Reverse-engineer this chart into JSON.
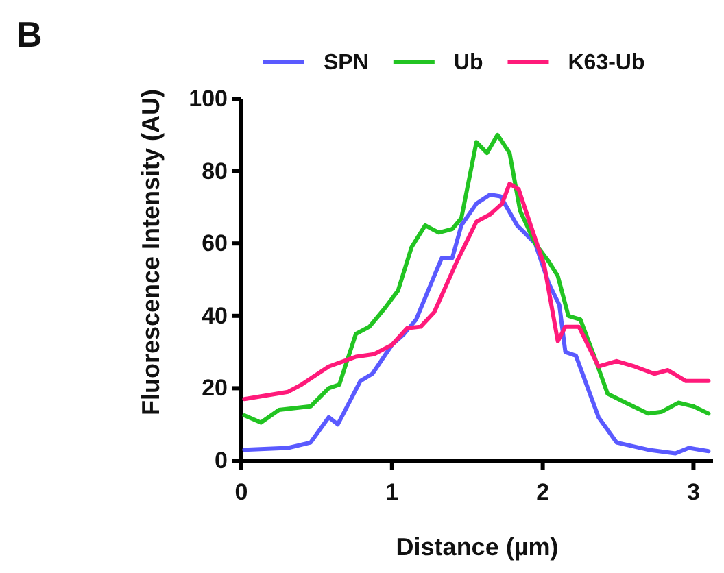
{
  "chart_data": {
    "type": "line",
    "title": "B",
    "xlabel": "Distance (µm)",
    "ylabel": "Fluorescence Intensity (AU)",
    "xlim": [
      0,
      3.13
    ],
    "xticks": [
      0,
      1,
      2,
      3
    ],
    "ylim": [
      0,
      100
    ],
    "yticks": [
      0,
      20,
      40,
      60,
      80,
      100
    ],
    "grid": false,
    "legend": "top",
    "marker": "none",
    "line_style": "solid",
    "series": [
      {
        "name": "SPN",
        "color": "#5a5aff",
        "x": [
          0.02,
          0.31,
          0.46,
          0.58,
          0.64,
          0.79,
          0.87,
          1.0,
          1.08,
          1.16,
          1.28,
          1.33,
          1.4,
          1.46,
          1.56,
          1.65,
          1.72,
          1.83,
          1.95,
          2.04,
          2.11,
          2.15,
          2.22,
          2.37,
          2.49,
          2.7,
          2.88,
          2.97,
          3.1
        ],
        "values": [
          3,
          3.5,
          5,
          12,
          10,
          22,
          24,
          32,
          35,
          39,
          51,
          56,
          56,
          65,
          71,
          73.5,
          73,
          65,
          60,
          49,
          43,
          30,
          29,
          12,
          5,
          3,
          2,
          3.5,
          2.6
        ]
      },
      {
        "name": "Ub",
        "color": "#22c422",
        "x": [
          0.02,
          0.13,
          0.25,
          0.46,
          0.58,
          0.65,
          0.76,
          0.85,
          0.95,
          1.04,
          1.13,
          1.22,
          1.31,
          1.4,
          1.46,
          1.56,
          1.63,
          1.7,
          1.78,
          1.85,
          1.95,
          2.04,
          2.1,
          2.17,
          2.25,
          2.34,
          2.43,
          2.55,
          2.7,
          2.79,
          2.9,
          3.0,
          3.1
        ],
        "values": [
          12.5,
          10.5,
          14,
          15,
          20,
          21,
          35,
          37,
          42,
          47,
          59,
          65,
          63,
          64,
          67,
          88,
          85,
          90,
          85,
          69,
          60,
          55,
          51,
          40,
          39,
          29,
          18.5,
          16,
          13,
          13.5,
          16,
          15,
          13
        ]
      },
      {
        "name": "K63-Ub",
        "color": "#ff1a7a",
        "x": [
          0.02,
          0.31,
          0.4,
          0.58,
          0.76,
          0.88,
          1.0,
          1.1,
          1.19,
          1.28,
          1.43,
          1.56,
          1.65,
          1.73,
          1.78,
          1.84,
          1.92,
          2.01,
          2.1,
          2.15,
          2.24,
          2.37,
          2.49,
          2.61,
          2.74,
          2.83,
          2.95,
          3.1
        ],
        "values": [
          17,
          19,
          21,
          26,
          28.7,
          29.4,
          32,
          36.6,
          37,
          41,
          55,
          66,
          68,
          71,
          76.5,
          75,
          65,
          54,
          33,
          37,
          37,
          26,
          27.5,
          26,
          24,
          25,
          22,
          22
        ]
      }
    ]
  }
}
